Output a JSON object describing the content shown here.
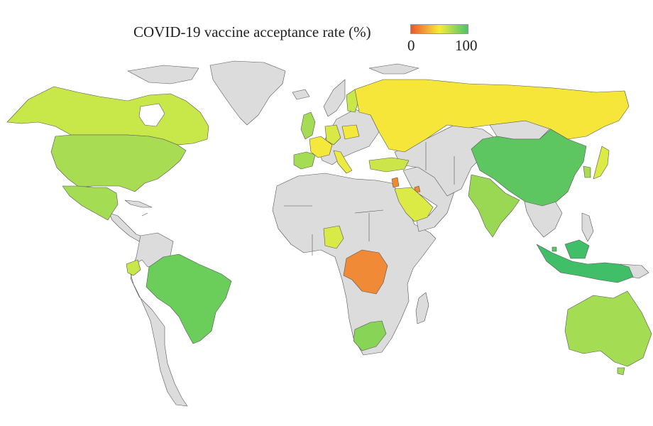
{
  "legend": {
    "title": "COVID-19 vaccine acceptance rate (%)",
    "min_label": "0",
    "max_label": "100",
    "colors": {
      "low": "#f0552a",
      "mid": "#f6ec3c",
      "high": "#4cc46a"
    }
  },
  "colors": {
    "no_data": "#dcdcdc",
    "border": "#555555",
    "background": "#ffffff"
  },
  "countries": [
    {
      "name": "Canada",
      "color": "#c8e84a"
    },
    {
      "name": "United States",
      "color": "#a8dc52"
    },
    {
      "name": "Mexico",
      "color": "#a4dc54"
    },
    {
      "name": "Ecuador",
      "color": "#c8e84a"
    },
    {
      "name": "Brazil",
      "color": "#6cce5a"
    },
    {
      "name": "United Kingdom",
      "color": "#a4dc54"
    },
    {
      "name": "Spain",
      "color": "#a4dc54"
    },
    {
      "name": "France",
      "color": "#f4e83c"
    },
    {
      "name": "Italy",
      "color": "#ecea40"
    },
    {
      "name": "Germany",
      "color": "#d8e844"
    },
    {
      "name": "Poland",
      "color": "#f4e83c"
    },
    {
      "name": "Finland",
      "color": "#c8e84a"
    },
    {
      "name": "Russia",
      "color": "#f6e63a"
    },
    {
      "name": "Turkey",
      "color": "#cce64a"
    },
    {
      "name": "Jordan",
      "color": "#f08a2a"
    },
    {
      "name": "Kuwait",
      "color": "#f08a2a"
    },
    {
      "name": "Saudi Arabia",
      "color": "#dcea46"
    },
    {
      "name": "Nigeria",
      "color": "#d8ea48"
    },
    {
      "name": "DR Congo",
      "color": "#f08a36"
    },
    {
      "name": "South Africa",
      "color": "#88d456"
    },
    {
      "name": "India",
      "color": "#9ad854"
    },
    {
      "name": "China",
      "color": "#5ec660"
    },
    {
      "name": "South Korea",
      "color": "#a8dc52"
    },
    {
      "name": "Japan",
      "color": "#dcea46"
    },
    {
      "name": "Singapore",
      "color": "#5ec660"
    },
    {
      "name": "Indonesia",
      "color": "#40be68"
    },
    {
      "name": "Australia",
      "color": "#a4dc54"
    }
  ]
}
